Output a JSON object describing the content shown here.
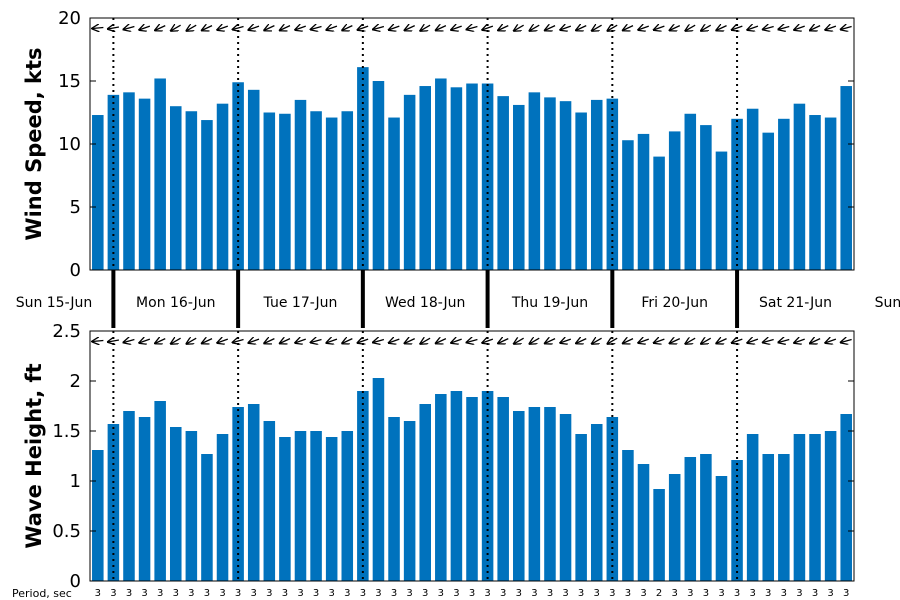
{
  "colors": {
    "bar": "#0072bd",
    "axis": "#000000",
    "arrow": "#000000"
  },
  "day_labels": [
    "Sun 15-Jun",
    "Mon 16-Jun",
    "Tue 17-Jun",
    "Wed 18-Jun",
    "Thu 19-Jun",
    "Fri 20-Jun",
    "Sat 21-Jun",
    "Sun"
  ],
  "period_axis_label": "Period, sec",
  "chart_data": [
    {
      "type": "bar",
      "ylabel": "Wind Speed, kts",
      "ylim": [
        0,
        20
      ],
      "yticks": [
        0,
        5,
        10,
        15,
        20
      ],
      "grid": false,
      "values": [
        12.3,
        13.9,
        14.1,
        13.6,
        15.2,
        13.0,
        12.6,
        11.9,
        13.2,
        14.9,
        14.3,
        12.5,
        12.4,
        13.5,
        12.6,
        12.1,
        12.6,
        16.1,
        15.0,
        12.1,
        13.9,
        14.6,
        15.2,
        14.5,
        14.8,
        14.8,
        13.8,
        13.1,
        14.1,
        13.7,
        13.4,
        12.5,
        13.5,
        13.6,
        10.3,
        10.8,
        9.0,
        11.0,
        12.4,
        11.5,
        9.4,
        12.0,
        12.8,
        10.9,
        12.0,
        13.2,
        12.3,
        12.1,
        14.6
      ],
      "direction_arrow_angles_deg": [
        185,
        190,
        195,
        200,
        205,
        210,
        210,
        205,
        200,
        195,
        200,
        205,
        205,
        200,
        195,
        200,
        205,
        200,
        195,
        200,
        205,
        210,
        205,
        200,
        195,
        200,
        205,
        210,
        210,
        205,
        200,
        205,
        210,
        210,
        205,
        200,
        200,
        205,
        210,
        210,
        205,
        200,
        200,
        195,
        195,
        200,
        205,
        200,
        195
      ]
    },
    {
      "type": "bar",
      "ylabel": "Wave Height, ft",
      "ylim": [
        0,
        2.5
      ],
      "yticks": [
        0,
        0.5,
        1,
        1.5,
        2,
        2.5
      ],
      "grid": false,
      "values": [
        1.31,
        1.57,
        1.7,
        1.64,
        1.8,
        1.54,
        1.5,
        1.27,
        1.47,
        1.74,
        1.77,
        1.6,
        1.44,
        1.5,
        1.5,
        1.44,
        1.5,
        1.9,
        2.03,
        1.64,
        1.6,
        1.77,
        1.87,
        1.9,
        1.84,
        1.9,
        1.84,
        1.7,
        1.74,
        1.74,
        1.67,
        1.47,
        1.57,
        1.64,
        1.31,
        1.17,
        0.92,
        1.07,
        1.24,
        1.27,
        1.05,
        1.21,
        1.47,
        1.27,
        1.27,
        1.47,
        1.47,
        1.5,
        1.67
      ],
      "periods_sec": [
        3,
        3,
        3,
        3,
        3,
        3,
        3,
        3,
        3,
        3,
        3,
        3,
        3,
        3,
        3,
        3,
        3,
        3,
        3,
        3,
        3,
        3,
        3,
        3,
        3,
        3,
        3,
        3,
        3,
        3,
        3,
        3,
        3,
        3,
        3,
        3,
        2,
        3,
        3,
        3,
        3,
        3,
        3,
        3,
        3,
        3,
        3,
        3,
        3
      ],
      "direction_arrow_angles_deg": [
        185,
        190,
        195,
        200,
        205,
        210,
        210,
        205,
        200,
        195,
        200,
        205,
        205,
        200,
        195,
        200,
        205,
        200,
        195,
        200,
        205,
        210,
        205,
        200,
        195,
        200,
        205,
        210,
        210,
        205,
        200,
        205,
        210,
        210,
        205,
        200,
        200,
        205,
        210,
        210,
        205,
        200,
        200,
        195,
        195,
        200,
        205,
        200,
        195
      ]
    }
  ]
}
